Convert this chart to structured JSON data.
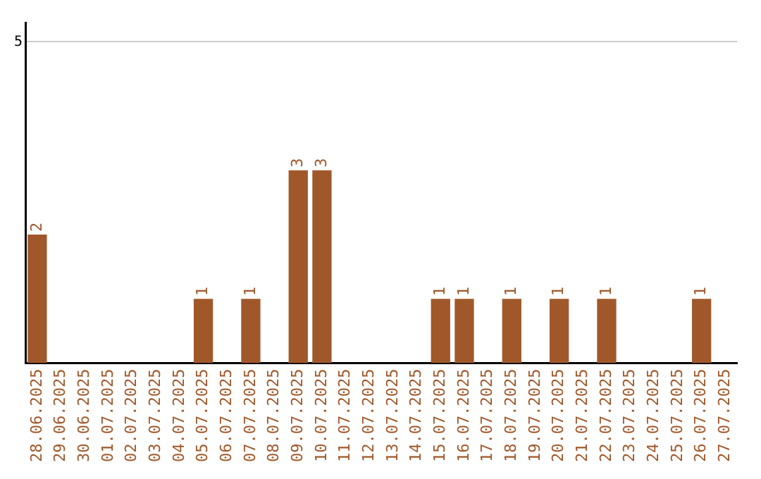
{
  "chart_data": {
    "type": "bar",
    "categories": [
      "28.06.2025",
      "29.06.2025",
      "30.06.2025",
      "01.07.2025",
      "02.07.2025",
      "03.07.2025",
      "04.07.2025",
      "05.07.2025",
      "06.07.2025",
      "07.07.2025",
      "08.07.2025",
      "09.07.2025",
      "10.07.2025",
      "11.07.2025",
      "12.07.2025",
      "13.07.2025",
      "14.07.2025",
      "15.07.2025",
      "16.07.2025",
      "17.07.2025",
      "18.07.2025",
      "19.07.2025",
      "20.07.2025",
      "21.07.2025",
      "22.07.2025",
      "23.07.2025",
      "24.07.2025",
      "25.07.2025",
      "26.07.2025",
      "27.07.2025"
    ],
    "values": [
      2,
      0,
      0,
      0,
      0,
      0,
      0,
      1,
      0,
      1,
      0,
      3,
      3,
      0,
      0,
      0,
      0,
      1,
      1,
      0,
      1,
      0,
      1,
      0,
      1,
      0,
      0,
      0,
      1,
      0
    ],
    "value_labels": [
      "2",
      null,
      null,
      null,
      null,
      null,
      null,
      "1",
      null,
      "1",
      null,
      "3",
      "3",
      null,
      null,
      null,
      null,
      "1",
      "1",
      null,
      "1",
      null,
      "1",
      null,
      "1",
      null,
      null,
      null,
      "1",
      null
    ],
    "color": "#a0582a",
    "ylim": [
      0,
      5.3
    ],
    "yticks": [
      5
    ],
    "grid": "y",
    "legend": false
  }
}
